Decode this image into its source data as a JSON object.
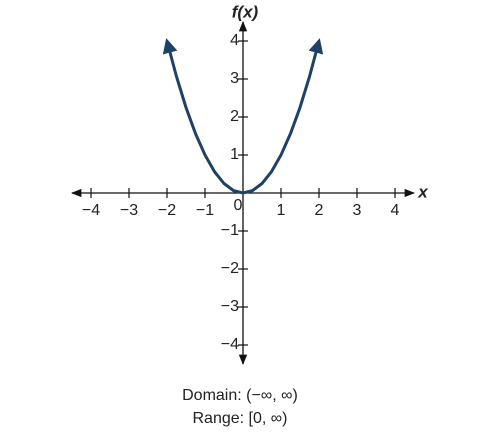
{
  "chart_data": {
    "type": "line",
    "x_label": "x",
    "y_label": "f(x)",
    "origin_label": "0",
    "x": [
      -2,
      -1.75,
      -1.5,
      -1.25,
      -1,
      -0.75,
      -0.5,
      -0.25,
      0,
      0.25,
      0.5,
      0.75,
      1,
      1.25,
      1.5,
      1.75,
      2
    ],
    "series": [
      {
        "color": "#1d4167",
        "values": [
          4,
          3.0625,
          2.25,
          1.5625,
          1,
          0.5625,
          0.25,
          0.0625,
          0,
          0.0625,
          0.25,
          0.5625,
          1,
          1.5625,
          2.25,
          3.0625,
          4
        ]
      }
    ],
    "xlim": [
      -4.5,
      4.5
    ],
    "ylim": [
      -4.5,
      4.5
    ],
    "xticks": [
      {
        "value": -4,
        "label": "−4"
      },
      {
        "value": -3,
        "label": "−3"
      },
      {
        "value": -2,
        "label": "−2"
      },
      {
        "value": -1,
        "label": "−1"
      },
      1,
      2,
      3,
      4
    ],
    "yticks": [
      {
        "value": -4,
        "label": "−4"
      },
      {
        "value": -3,
        "label": "−3"
      },
      {
        "value": -2,
        "label": "−2"
      },
      {
        "value": -1,
        "label": "−1"
      },
      1,
      2,
      3,
      4
    ],
    "captions": [
      "Domain: (−∞, ∞)",
      "Range: [0, ∞)"
    ]
  }
}
